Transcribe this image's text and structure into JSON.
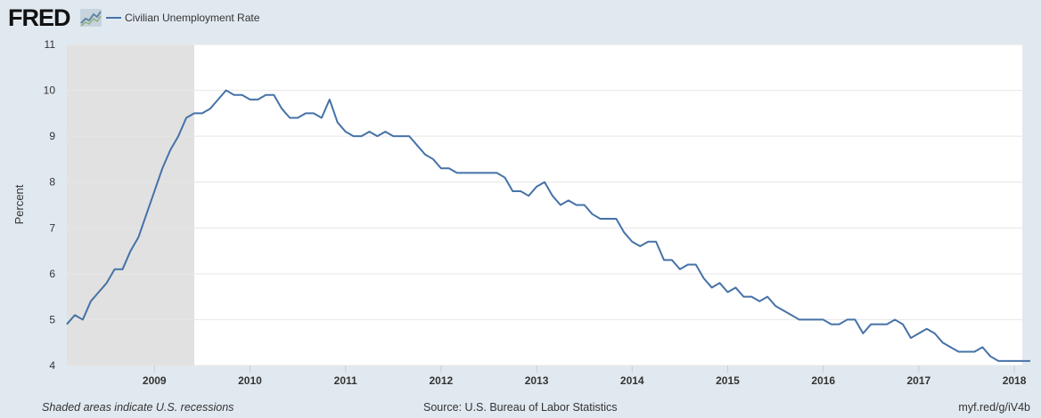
{
  "header": {
    "logo_text": "FRED",
    "logo_icon": "sparkline-chart-icon",
    "legend_label": "Civilian Unemployment Rate"
  },
  "footer": {
    "note": "Shaded areas indicate U.S. recessions",
    "source": "Source: U.S. Bureau of Labor Statistics",
    "url": "myf.red/g/iV4b"
  },
  "colors": {
    "background": "#e1e9f0",
    "plot_background": "#ffffff",
    "recession_shade": "#e1e1e1",
    "line": "#4572a7",
    "gridline": "#e6e6e6"
  },
  "chart_data": {
    "type": "line",
    "title": "",
    "xlabel": "",
    "ylabel": "Percent",
    "ylim": [
      4,
      11
    ],
    "yticks": [
      4,
      5,
      6,
      7,
      8,
      9,
      10,
      11
    ],
    "xticks": [
      "2009",
      "2010",
      "2011",
      "2012",
      "2013",
      "2014",
      "2015",
      "2016",
      "2017",
      "2018"
    ],
    "xlim": [
      "2008-02",
      "2018-02"
    ],
    "grid": true,
    "legend_position": "top-left",
    "recessions": [
      {
        "start": "2008-02",
        "end": "2009-06"
      }
    ],
    "series": [
      {
        "name": "Civilian Unemployment Rate",
        "start": "2008-02",
        "frequency": "monthly",
        "values": [
          4.9,
          5.1,
          5.0,
          5.4,
          5.6,
          5.8,
          6.1,
          6.1,
          6.5,
          6.8,
          7.3,
          7.8,
          8.3,
          8.7,
          9.0,
          9.4,
          9.5,
          9.5,
          9.6,
          9.8,
          10.0,
          9.9,
          9.9,
          9.8,
          9.8,
          9.9,
          9.9,
          9.6,
          9.4,
          9.4,
          9.5,
          9.5,
          9.4,
          9.8,
          9.3,
          9.1,
          9.0,
          9.0,
          9.1,
          9.0,
          9.1,
          9.0,
          9.0,
          9.0,
          8.8,
          8.6,
          8.5,
          8.3,
          8.3,
          8.2,
          8.2,
          8.2,
          8.2,
          8.2,
          8.2,
          8.1,
          7.8,
          7.8,
          7.7,
          7.9,
          8.0,
          7.7,
          7.5,
          7.6,
          7.5,
          7.5,
          7.3,
          7.2,
          7.2,
          7.2,
          6.9,
          6.7,
          6.6,
          6.7,
          6.7,
          6.3,
          6.3,
          6.1,
          6.2,
          6.2,
          5.9,
          5.7,
          5.8,
          5.6,
          5.7,
          5.5,
          5.5,
          5.4,
          5.5,
          5.3,
          5.2,
          5.1,
          5.0,
          5.0,
          5.0,
          5.0,
          4.9,
          4.9,
          5.0,
          5.0,
          4.7,
          4.9,
          4.9,
          4.9,
          5.0,
          4.9,
          4.6,
          4.7,
          4.8,
          4.7,
          4.5,
          4.4,
          4.3,
          4.3,
          4.3,
          4.4,
          4.2,
          4.1,
          4.1,
          4.1,
          4.1,
          4.1
        ]
      }
    ]
  }
}
